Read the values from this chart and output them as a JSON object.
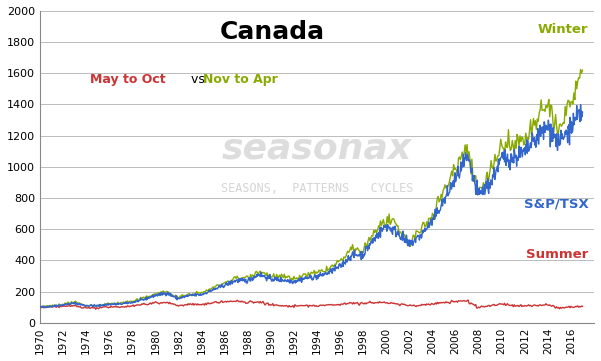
{
  "title": "Canada",
  "subtitle_summer": "May to Oct",
  "subtitle_vs": " vs ",
  "subtitle_winter": "Nov to Apr",
  "label_winter": "Winter",
  "label_summer": "Summer",
  "label_index": "S&P/TSX",
  "watermark_line1": "seasonax",
  "watermark_line2": "SEASONS,  PATTERNS   CYCLES",
  "color_summer": "#cc3333",
  "color_winter": "#88aa00",
  "color_index": "#3366cc",
  "ylim": [
    0,
    2000
  ],
  "yticks": [
    0,
    200,
    400,
    600,
    800,
    1000,
    1200,
    1400,
    1600,
    1800,
    2000
  ],
  "xlim": [
    1970,
    2018
  ],
  "xticks": [
    1970,
    1972,
    1974,
    1976,
    1978,
    1980,
    1982,
    1984,
    1986,
    1988,
    1990,
    1992,
    1994,
    1996,
    1998,
    2000,
    2002,
    2004,
    2006,
    2008,
    2010,
    2012,
    2014,
    2016
  ],
  "years": [
    1970,
    1971,
    1972,
    1973,
    1974,
    1975,
    1976,
    1977,
    1978,
    1979,
    1980,
    1981,
    1982,
    1983,
    1984,
    1985,
    1986,
    1987,
    1988,
    1989,
    1990,
    1991,
    1992,
    1993,
    1994,
    1995,
    1996,
    1997,
    1998,
    1999,
    2000,
    2001,
    2002,
    2003,
    2004,
    2005,
    2006,
    2007,
    2008,
    2009,
    2010,
    2011,
    2012,
    2013,
    2014,
    2015,
    2016,
    2017
  ],
  "index_values": [
    100,
    105,
    115,
    125,
    110,
    108,
    118,
    120,
    130,
    148,
    175,
    190,
    155,
    175,
    180,
    210,
    240,
    270,
    270,
    310,
    280,
    275,
    265,
    285,
    295,
    320,
    360,
    430,
    440,
    540,
    620,
    580,
    500,
    560,
    650,
    780,
    920,
    1050,
    820,
    890,
    1050,
    1060,
    1090,
    1180,
    1260,
    1150,
    1250,
    1350
  ],
  "winter_values": [
    100,
    108,
    118,
    130,
    112,
    110,
    122,
    126,
    136,
    156,
    185,
    198,
    162,
    182,
    190,
    222,
    255,
    285,
    290,
    330,
    300,
    295,
    280,
    305,
    318,
    345,
    390,
    465,
    460,
    580,
    660,
    610,
    510,
    590,
    690,
    840,
    990,
    1130,
    840,
    965,
    1130,
    1130,
    1170,
    1280,
    1390,
    1240,
    1400,
    1620
  ],
  "summer_values": [
    98,
    100,
    105,
    108,
    95,
    94,
    100,
    102,
    108,
    118,
    128,
    130,
    110,
    118,
    115,
    128,
    135,
    138,
    130,
    135,
    115,
    108,
    105,
    110,
    108,
    112,
    118,
    128,
    122,
    130,
    130,
    120,
    110,
    112,
    120,
    130,
    135,
    140,
    100,
    108,
    120,
    110,
    108,
    110,
    115,
    95,
    100,
    105
  ]
}
